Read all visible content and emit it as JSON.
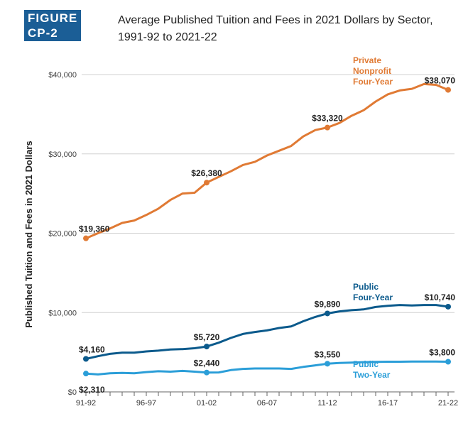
{
  "figure_label": "FIGURE CP-2",
  "chart_data": {
    "type": "line",
    "title": "Average Published Tuition and Fees in 2021 Dollars by Sector, 1991-92 to 2021-22",
    "title_line1": "Average Published Tuition and Fees in 2021 Dollars by Sector,",
    "title_line2": "1991-92 to 2021-22",
    "xlabel": "",
    "ylabel": "Published Tuition and Fees in 2021 Dollars",
    "ylim": [
      0,
      40000
    ],
    "yticks": [
      0,
      10000,
      20000,
      30000,
      40000
    ],
    "ytick_labels": [
      "$0",
      "$10,000",
      "$20,000",
      "$30,000",
      "$40,000"
    ],
    "x": [
      "91-92",
      "92-93",
      "93-94",
      "94-95",
      "95-96",
      "96-97",
      "97-98",
      "98-99",
      "99-00",
      "00-01",
      "01-02",
      "02-03",
      "03-04",
      "04-05",
      "05-06",
      "06-07",
      "07-08",
      "08-09",
      "09-10",
      "10-11",
      "11-12",
      "12-13",
      "13-14",
      "14-15",
      "15-16",
      "16-17",
      "17-18",
      "18-19",
      "19-20",
      "20-21",
      "21-22"
    ],
    "xtick_labels": [
      "91-92",
      "96-97",
      "01-02",
      "06-07",
      "11-12",
      "16-17",
      "21-22"
    ],
    "grid": true,
    "series": [
      {
        "name": [
          "Private",
          "Nonprofit",
          "Four-Year"
        ],
        "color": "#e07a34",
        "values": [
          19360,
          20000,
          20600,
          21300,
          21600,
          22300,
          23100,
          24200,
          25000,
          25100,
          26380,
          27100,
          27800,
          28600,
          29000,
          29800,
          30400,
          31000,
          32200,
          33000,
          33320,
          33900,
          34800,
          35500,
          36600,
          37500,
          38000,
          38200,
          38800,
          38700,
          38070
        ],
        "labels": [
          {
            "i": 0,
            "text": "$19,360"
          },
          {
            "i": 10,
            "text": "$26,380"
          },
          {
            "i": 20,
            "text": "$33,320"
          },
          {
            "i": 30,
            "text": "$38,070"
          }
        ]
      },
      {
        "name": [
          "Public",
          "Four-Year"
        ],
        "color": "#0b5a8c",
        "values": [
          4160,
          4500,
          4800,
          4950,
          4950,
          5100,
          5200,
          5350,
          5400,
          5500,
          5720,
          6200,
          6800,
          7300,
          7550,
          7750,
          8050,
          8250,
          8900,
          9450,
          9890,
          10150,
          10300,
          10400,
          10700,
          10850,
          10950,
          10900,
          10950,
          10950,
          10740
        ],
        "labels": [
          {
            "i": 0,
            "text": "$4,160"
          },
          {
            "i": 10,
            "text": "$5,720"
          },
          {
            "i": 20,
            "text": "$9,890"
          },
          {
            "i": 30,
            "text": "$10,740"
          }
        ]
      },
      {
        "name": [
          "Public",
          "Two-Year"
        ],
        "color": "#2b9ed8",
        "values": [
          2310,
          2200,
          2350,
          2400,
          2350,
          2500,
          2600,
          2550,
          2650,
          2550,
          2440,
          2450,
          2750,
          2900,
          2950,
          2950,
          2950,
          2900,
          3150,
          3350,
          3550,
          3650,
          3700,
          3750,
          3780,
          3800,
          3800,
          3820,
          3830,
          3820,
          3800
        ],
        "labels": [
          {
            "i": 0,
            "text": "$2,310"
          },
          {
            "i": 10,
            "text": "$2,440"
          },
          {
            "i": 20,
            "text": "$3,550"
          },
          {
            "i": 30,
            "text": "$3,800"
          }
        ]
      }
    ]
  }
}
